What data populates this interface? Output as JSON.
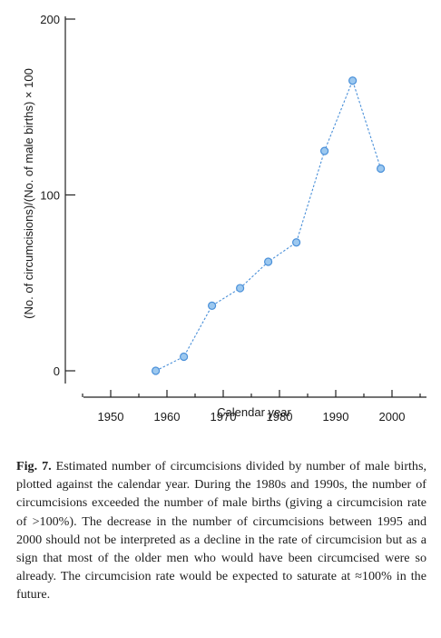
{
  "chart_data": {
    "type": "line",
    "xlabel": "Calendar year",
    "ylabel": "(No. of circumcisions)/(No. of male births) × 100",
    "x_ticks": [
      1950,
      1960,
      1970,
      1980,
      1990,
      2000
    ],
    "y_ticks": [
      0,
      100,
      200
    ],
    "xlim": [
      1945,
      2005
    ],
    "ylim": [
      0,
      200
    ],
    "series": [
      {
        "x": [
          1958,
          1963,
          1968,
          1973,
          1978,
          1983,
          1988,
          1993,
          1998
        ],
        "values": [
          0,
          8,
          37,
          47,
          62,
          73,
          125,
          165,
          115
        ],
        "color": "#4a90d9"
      }
    ]
  },
  "caption": {
    "label": "Fig. 7.",
    "text": "Estimated number of circumcisions divided by number of male births, plotted against the calendar year. During the 1980s and 1990s, the number of circumcisions exceeded the number of male births (giving a circumcision rate of >100%). The decrease in the number of circumcisions between 1995 and 2000 should not be interpreted as a decline in the rate of circumcision but as a sign that most of the older men who would have been circumcised were so already. The circumcision rate would be expected to saturate at ≈100% in the future."
  }
}
